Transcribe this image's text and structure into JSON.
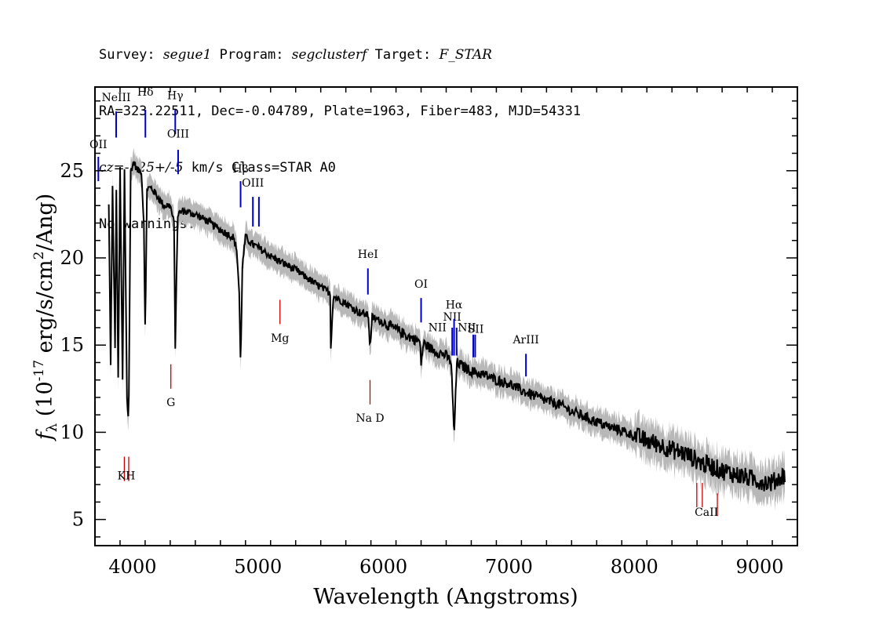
{
  "header": {
    "line1": {
      "survey_label": "Survey: ",
      "survey": "segue1",
      "program_label": " Program: ",
      "program": "segclusterf",
      "target_label": " Target: ",
      "target": "F_STAR"
    },
    "line2": "RA=323.22511, Dec=-0.04789, Plate=1963, Fiber=483, MJD=54331",
    "line3": {
      "cz": "cz=-125+/-5",
      "rest": " km/s Class=STAR A0"
    },
    "line4": "No warnings."
  },
  "colors": {
    "spectrum": "#000000",
    "error_band": "#b8b8b8",
    "emission_line": "#0000cc",
    "absorption_line": "#cc0000",
    "axes": "#000000"
  },
  "chart_data": {
    "type": "line",
    "xlabel": "Wavelength (Angstroms)",
    "ylabel": "f_λ (10^-17 erg/s/cm^2/Ang)",
    "xlim": [
      3700,
      9300
    ],
    "ylim": [
      3.5,
      29.8
    ],
    "xticks": [
      4000,
      5000,
      6000,
      7000,
      8000,
      9000
    ],
    "yticks": [
      5,
      10,
      15,
      20,
      25
    ],
    "series": [
      {
        "points": [
          [
            3810,
            23
          ],
          [
            3825,
            14
          ],
          [
            3840,
            24
          ],
          [
            3860,
            15
          ],
          [
            3870,
            24
          ],
          [
            3885,
            13
          ],
          [
            3900,
            25
          ],
          [
            3920,
            13
          ],
          [
            3935,
            25
          ],
          [
            3955,
            12
          ],
          [
            3968,
            10.5
          ],
          [
            3985,
            25
          ],
          [
            4010,
            25.5
          ],
          [
            4040,
            25
          ],
          [
            4070,
            25
          ],
          [
            4090,
            22
          ],
          [
            4101,
            15.5
          ],
          [
            4115,
            24
          ],
          [
            4150,
            24
          ],
          [
            4200,
            23.5
          ],
          [
            4250,
            23
          ],
          [
            4300,
            23
          ],
          [
            4330,
            22
          ],
          [
            4340,
            15
          ],
          [
            4360,
            22.5
          ],
          [
            4400,
            22.7
          ],
          [
            4500,
            22.5
          ],
          [
            4600,
            22.1
          ],
          [
            4700,
            21.6
          ],
          [
            4800,
            21.2
          ],
          [
            4830,
            20.5
          ],
          [
            4850,
            18
          ],
          [
            4861,
            13.8
          ],
          [
            4875,
            19.5
          ],
          [
            4900,
            21.2
          ],
          [
            4950,
            20.8
          ],
          [
            5000,
            20.6
          ],
          [
            5100,
            20.1
          ],
          [
            5200,
            19.7
          ],
          [
            5300,
            19.3
          ],
          [
            5400,
            18.8
          ],
          [
            5500,
            18.3
          ],
          [
            5577,
            18
          ],
          [
            5580,
            14.9
          ],
          [
            5600,
            17.8
          ],
          [
            5700,
            17.4
          ],
          [
            5800,
            16.9
          ],
          [
            5880,
            16.7
          ],
          [
            5893,
            14.8
          ],
          [
            5910,
            16.6
          ],
          [
            6000,
            16.3
          ],
          [
            6100,
            15.9
          ],
          [
            6200,
            15.5
          ],
          [
            6290,
            15.2
          ],
          [
            6300,
            14
          ],
          [
            6320,
            15.1
          ],
          [
            6400,
            14.7
          ],
          [
            6500,
            14.4
          ],
          [
            6540,
            14
          ],
          [
            6563,
            9.8
          ],
          [
            6585,
            14
          ],
          [
            6650,
            13.7
          ],
          [
            6700,
            13.5
          ],
          [
            6800,
            13.3
          ],
          [
            6900,
            13
          ],
          [
            7000,
            12.8
          ],
          [
            7100,
            12.4
          ],
          [
            7200,
            12.1
          ],
          [
            7300,
            11.8
          ],
          [
            7400,
            11.6
          ],
          [
            7500,
            11.2
          ],
          [
            7600,
            10.9
          ],
          [
            7700,
            10.6
          ],
          [
            7800,
            10.3
          ],
          [
            7900,
            10.1
          ],
          [
            8000,
            9.8
          ],
          [
            8100,
            9.5
          ],
          [
            8200,
            9.3
          ],
          [
            8300,
            9
          ],
          [
            8400,
            8.8
          ],
          [
            8498,
            8.4
          ],
          [
            8542,
            8.2
          ],
          [
            8600,
            8.1
          ],
          [
            8662,
            7.9
          ],
          [
            8700,
            7.8
          ],
          [
            8800,
            7.6
          ],
          [
            8900,
            7.4
          ],
          [
            9000,
            7.2
          ],
          [
            9100,
            7.1
          ],
          [
            9200,
            7.6
          ]
        ]
      }
    ],
    "line_labels": [
      {
        "text": "NeIII",
        "wave": 3869,
        "kind": "emission",
        "tick": [
          26.9,
          28.4
        ],
        "label_y": 29.0
      },
      {
        "text": "Hδ",
        "wave": 4102,
        "kind": "emission",
        "tick": [
          26.9,
          28.5
        ],
        "label_y": 29.3
      },
      {
        "text": "Hγ",
        "wave": 4340,
        "kind": "emission",
        "tick": [
          27.1,
          28.5
        ],
        "label_y": 29.1
      },
      {
        "text": "OIII",
        "wave": 4363,
        "kind": "emission",
        "tick": [
          24.8,
          26.2
        ],
        "label_y": 26.9
      },
      {
        "text": "OII",
        "wave": 3727,
        "kind": "emission",
        "tick": [
          24.4,
          25.8
        ],
        "label_y": 26.3
      },
      {
        "text": "Hβ",
        "wave": 4861,
        "kind": "emission",
        "tick": [
          22.9,
          24.4
        ],
        "label_y": 24.9
      },
      {
        "text": "OIII",
        "wave": 4959,
        "kind": "emission",
        "tick": [
          21.8,
          23.5
        ],
        "label_y": 24.1
      },
      {
        "text": "OIII",
        "wave": 5007,
        "kind": "emission",
        "tick": [
          21.8,
          23.5
        ],
        "label_y": null
      },
      {
        "text": "HeI",
        "wave": 5876,
        "kind": "emission",
        "tick": [
          17.9,
          19.4
        ],
        "label_y": 20.0
      },
      {
        "text": "OI",
        "wave": 6300,
        "kind": "emission",
        "tick": [
          16.3,
          17.7
        ],
        "label_y": 18.3
      },
      {
        "text": "NII",
        "wave": 6548,
        "kind": "emission",
        "tick": [
          14.4,
          16
        ],
        "label_y": 16.4
      },
      {
        "text": "Hα",
        "wave": 6563,
        "kind": "emission",
        "tick": [
          14.4,
          16.5
        ],
        "label_y": 17.1
      },
      {
        "text": "NII",
        "wave": 6583,
        "kind": "emission",
        "tick": [
          14.4,
          16
        ],
        "label_y": null
      },
      {
        "text": "SII",
        "wave": 6716,
        "kind": "emission",
        "tick": [
          14.3,
          15.6
        ],
        "label_y": null
      },
      {
        "text": "SII",
        "wave": 6731,
        "kind": "emission",
        "tick": [
          14.3,
          15.6
        ],
        "label_y": null
      },
      {
        "text": "ArIII",
        "wave": 7136,
        "kind": "emission",
        "tick": [
          13.2,
          14.5
        ],
        "label_y": 15.1
      },
      {
        "text": "Mg",
        "wave": 5175,
        "kind": "absorption",
        "tick": [
          16.2,
          17.6
        ],
        "label_y": 15.2
      },
      {
        "text": "G",
        "wave": 4305,
        "kind": "absorption",
        "tick": [
          12.5,
          13.9
        ],
        "label_y": 11.5
      },
      {
        "text": "Na D",
        "wave": 5893,
        "kind": "absorption",
        "tick": [
          11.6,
          13.0
        ],
        "label_y": 10.6
      },
      {
        "text": "K",
        "wave": 3934,
        "kind": "absorption",
        "tick": [
          7.2,
          8.6
        ],
        "label_y": null
      },
      {
        "text": "H",
        "wave": 3969,
        "kind": "absorption",
        "tick": [
          7.2,
          8.6
        ],
        "label_y": null
      },
      {
        "text": "CaII",
        "wave": 8498,
        "kind": "absorption",
        "tick": [
          5.7,
          7.1
        ],
        "label_y": null
      },
      {
        "text": "CaII",
        "wave": 8542,
        "kind": "absorption",
        "tick": [
          5.7,
          7.1
        ],
        "label_y": null
      },
      {
        "text": "CaII",
        "wave": 8662,
        "kind": "absorption",
        "tick": [
          5.2,
          6.5
        ],
        "label_y": null
      }
    ],
    "extra_labels": [
      {
        "text": "KH",
        "wave": 3950,
        "y": 7.3
      },
      {
        "text": "NII",
        "wave": 6430,
        "y": 15.8
      },
      {
        "text": "NII",
        "wave": 6665,
        "y": 15.8
      },
      {
        "text": "SII",
        "wave": 6735,
        "y": 15.7
      },
      {
        "text": "CaII",
        "wave": 8575,
        "y": 5.2
      }
    ]
  }
}
